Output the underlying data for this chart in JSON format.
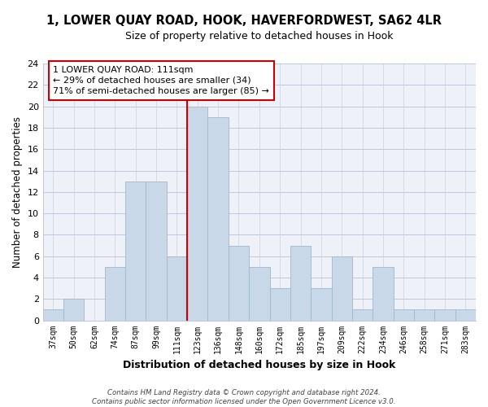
{
  "title": "1, LOWER QUAY ROAD, HOOK, HAVERFORDWEST, SA62 4LR",
  "subtitle": "Size of property relative to detached houses in Hook",
  "xlabel": "Distribution of detached houses by size in Hook",
  "ylabel": "Number of detached properties",
  "categories": [
    "37sqm",
    "50sqm",
    "62sqm",
    "74sqm",
    "87sqm",
    "99sqm",
    "111sqm",
    "123sqm",
    "136sqm",
    "148sqm",
    "160sqm",
    "172sqm",
    "185sqm",
    "197sqm",
    "209sqm",
    "222sqm",
    "234sqm",
    "246sqm",
    "258sqm",
    "271sqm",
    "283sqm"
  ],
  "values": [
    1,
    2,
    0,
    5,
    13,
    13,
    6,
    20,
    19,
    7,
    5,
    3,
    7,
    3,
    6,
    1,
    5,
    1,
    1,
    1,
    1
  ],
  "highlight_index": 6,
  "bar_color": "#c8d8e8",
  "bar_edge_color": "#a0b8cc",
  "highlight_line_color": "#cc0000",
  "ylim": [
    0,
    24
  ],
  "yticks": [
    0,
    2,
    4,
    6,
    8,
    10,
    12,
    14,
    16,
    18,
    20,
    22,
    24
  ],
  "annotation_title": "1 LOWER QUAY ROAD: 111sqm",
  "annotation_line1": "← 29% of detached houses are smaller (34)",
  "annotation_line2": "71% of semi-detached houses are larger (85) →",
  "footer1": "Contains HM Land Registry data © Crown copyright and database right 2024.",
  "footer2": "Contains public sector information licensed under the Open Government Licence v3.0.",
  "bg_color": "#eef2f8"
}
